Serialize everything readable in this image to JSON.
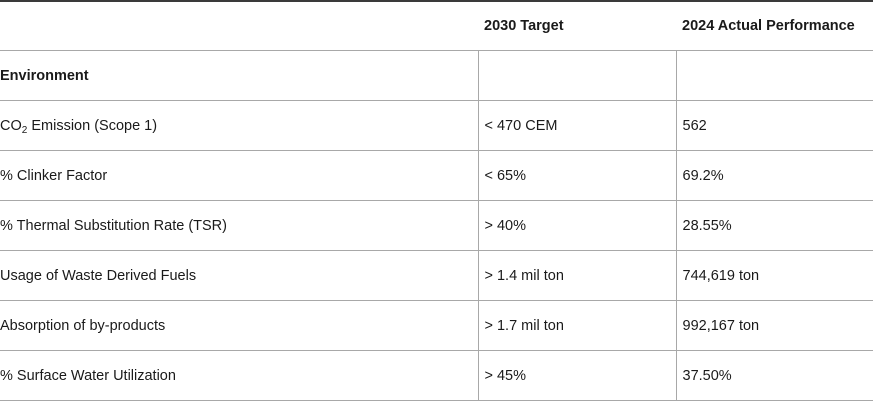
{
  "table": {
    "headers": [
      "",
      "2030 Target",
      "2024 Actual Performance"
    ],
    "section": "Environment",
    "rows": [
      {
        "metric_prefix": "CO",
        "metric_sub": "2",
        "metric_suffix": " Emission (Scope 1)",
        "target": "< 470 CEM",
        "actual": "562"
      },
      {
        "metric": "% Clinker Factor",
        "target": "< 65%",
        "actual": "69.2%"
      },
      {
        "metric": "% Thermal Substitution Rate (TSR)",
        "target": "> 40%",
        "actual": "28.55%"
      },
      {
        "metric": "Usage of Waste Derived Fuels",
        "target": "> 1.4 mil ton",
        "actual": "744,619 ton"
      },
      {
        "metric": "Absorption of by-products",
        "target": "> 1.7 mil ton",
        "actual": "992,167 ton"
      },
      {
        "metric": "% Surface Water Utilization",
        "target": "> 45%",
        "actual": "37.50%"
      }
    ]
  }
}
